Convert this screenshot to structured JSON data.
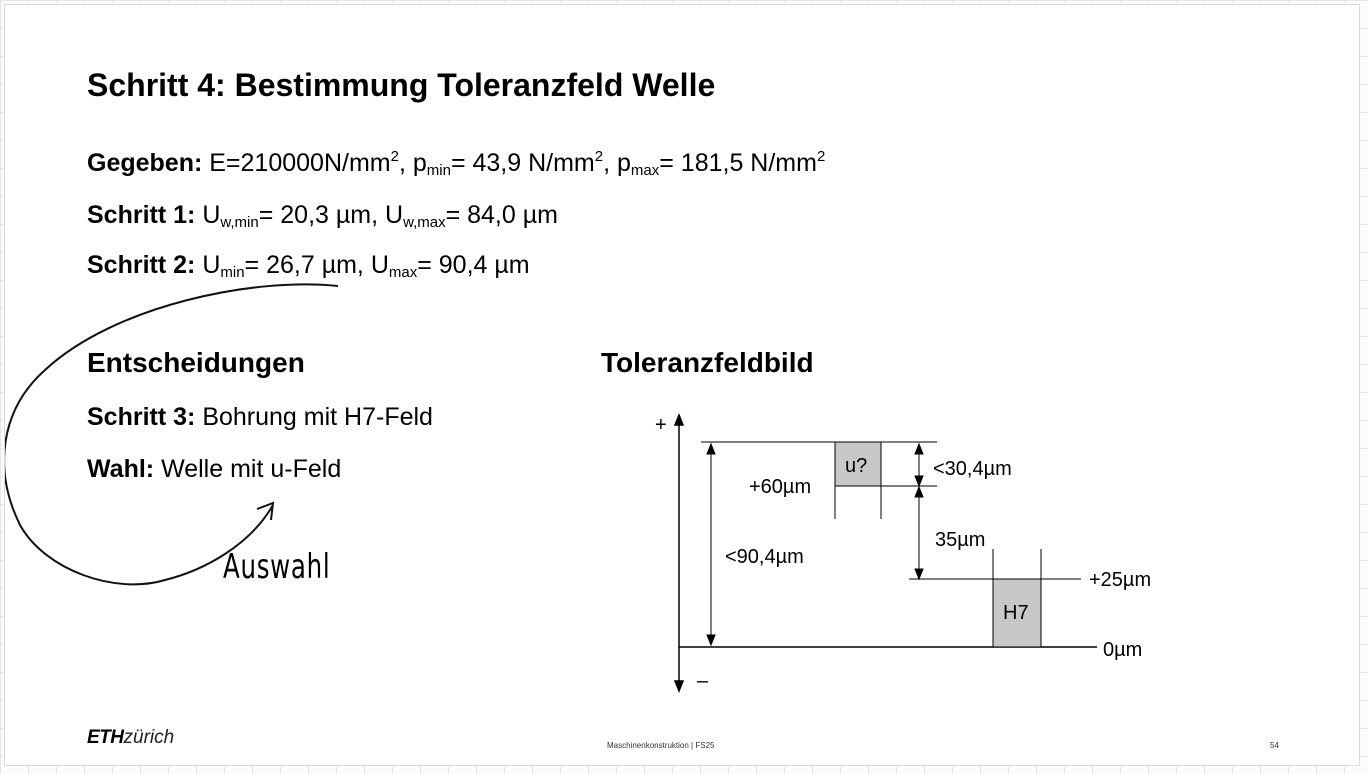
{
  "title": "Schritt 4: Bestimmung Toleranzfeld Welle",
  "given": {
    "label": "Gegeben:",
    "e_text": "E=210000N/mm",
    "exp": "2",
    "sep": ", ",
    "p": "p",
    "min_sub": "min",
    "pmin_value": "= 43,9 N/mm",
    "max_sub": "max",
    "pmax_value": "= 181,5 N/mm"
  },
  "step1": {
    "label": "Schritt 1:",
    "u": "U",
    "wmin_sub": "w,min",
    "wmin_value": "= 20,3 µm, ",
    "wmax_sub": "w,max",
    "wmax_value": "= 84,0 µm"
  },
  "step2": {
    "label": "Schritt 2:",
    "u": "U",
    "min_sub": "min",
    "min_value": "= 26,7 µm, ",
    "max_sub": "max",
    "max_value": "= 90,4 µm"
  },
  "decisions": {
    "heading": "Entscheidungen",
    "step3_label": "Schritt 3:",
    "step3_text": "Bohrung mit H7-Feld",
    "choice_label": "Wahl:",
    "choice_text": "Welle mit u-Feld"
  },
  "annotation": {
    "handwritten": "Auswahl"
  },
  "diagram": {
    "heading": "Toleranzfeldbild",
    "plus": "+",
    "minus": "–",
    "u_box": "u?",
    "h7_box": "H7",
    "label_plus60": "+60µm",
    "label_lt30": "<30,4µm",
    "label_35": "35µm",
    "label_lt90": "<90,4µm",
    "label_plus25": "+25µm",
    "label_0": "0µm"
  },
  "footer": {
    "logo_eth": "ETH",
    "logo_zurich": "zürich",
    "course": "Maschinenkonstruktion | FS25",
    "page": "54"
  },
  "colors": {
    "box_fill": "#c8c8c8",
    "line": "#000000",
    "guide": "#888888"
  }
}
